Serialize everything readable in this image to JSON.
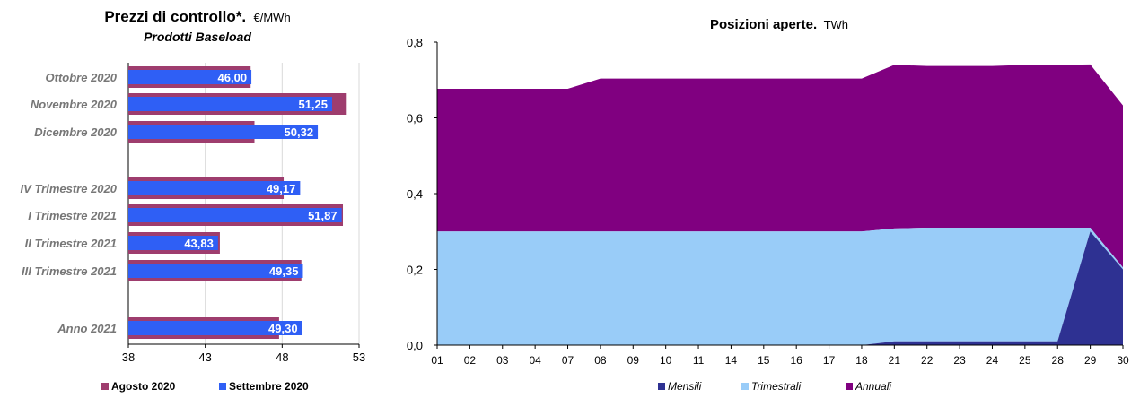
{
  "left_chart": {
    "title": "Prezzi di controllo*.",
    "unit": "€/MWh",
    "subtitle": "Prodotti Baseload",
    "legend": [
      {
        "label": "Agosto 2020",
        "color": "#9e3d6e"
      },
      {
        "label": "Settembre 2020",
        "color": "#2f5ff5"
      }
    ]
  },
  "right_chart": {
    "title": "Posizioni aperte",
    "unit": "TWh",
    "legend": [
      {
        "label": "Mensili",
        "color": "#2e3192"
      },
      {
        "label": "Trimestrali",
        "color": "#99ccf8"
      },
      {
        "label": "Annuali",
        "color": "#800080"
      }
    ]
  },
  "chart_data": [
    {
      "type": "bar",
      "orientation": "horizontal",
      "title": "Prezzi di controllo*. €/MWh",
      "subtitle": "Prodotti Baseload",
      "categories": [
        "Ottobre 2020",
        "Novembre 2020",
        "Dicembre 2020",
        "IV Trimestre 2020",
        "I Trimestre 2021",
        "II Trimestre 2021",
        "III Trimestre 2021",
        "Anno 2021"
      ],
      "series": [
        {
          "name": "Agosto 2020",
          "color": "#9e3d6e",
          "values": [
            45.95,
            52.2,
            46.2,
            48.1,
            51.95,
            43.95,
            49.25,
            47.8
          ]
        },
        {
          "name": "Settembre 2020",
          "color": "#2f5ff5",
          "values": [
            46.0,
            51.25,
            50.32,
            49.17,
            51.87,
            43.83,
            49.35,
            49.3
          ]
        }
      ],
      "data_labels": [
        "46,00",
        "51,25",
        "50,32",
        "49,17",
        "51,87",
        "43,83",
        "49,35",
        "49,30"
      ],
      "xlim": [
        38,
        53
      ],
      "xticks": [
        "38",
        "43",
        "48",
        "53"
      ],
      "grid": true,
      "legend_position": "bottom"
    },
    {
      "type": "area",
      "stacked": true,
      "title": "Posizioni aperte. TWh",
      "x": [
        "01",
        "02",
        "03",
        "04",
        "07",
        "08",
        "09",
        "10",
        "11",
        "14",
        "15",
        "16",
        "17",
        "18",
        "21",
        "22",
        "23",
        "24",
        "25",
        "28",
        "29",
        "30"
      ],
      "series": [
        {
          "name": "Mensili",
          "color": "#2e3192",
          "values": [
            0,
            0,
            0,
            0,
            0,
            0,
            0,
            0,
            0,
            0,
            0,
            0,
            0,
            0,
            0.01,
            0.01,
            0.01,
            0.01,
            0.01,
            0.01,
            0.3,
            0.2
          ]
        },
        {
          "name": "Trimestrali",
          "color": "#99ccf8",
          "values": [
            0.3,
            0.3,
            0.3,
            0.3,
            0.3,
            0.3,
            0.3,
            0.3,
            0.3,
            0.3,
            0.3,
            0.3,
            0.3,
            0.3,
            0.298,
            0.3,
            0.3,
            0.3,
            0.3,
            0.3,
            0.01,
            0.005
          ]
        },
        {
          "name": "Annuali",
          "color": "#800080",
          "values": [
            0.377,
            0.377,
            0.377,
            0.377,
            0.377,
            0.404,
            0.404,
            0.404,
            0.404,
            0.404,
            0.404,
            0.404,
            0.404,
            0.404,
            0.432,
            0.427,
            0.427,
            0.427,
            0.43,
            0.43,
            0.431,
            0.428
          ]
        }
      ],
      "yticks": [
        "0,0",
        "0,2",
        "0,4",
        "0,6",
        "0,8"
      ],
      "ylim": [
        0,
        0.8
      ],
      "grid": false,
      "legend_position": "bottom"
    }
  ]
}
